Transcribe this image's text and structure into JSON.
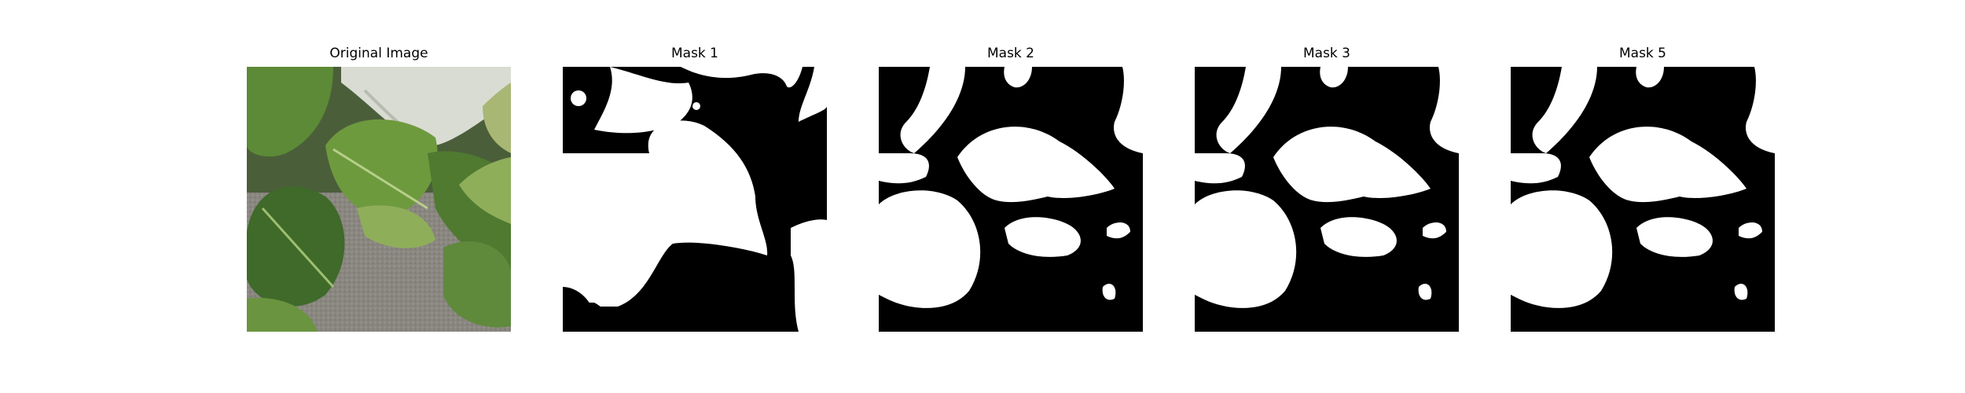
{
  "figure": {
    "panels": [
      {
        "id": "original",
        "title": "Original Image",
        "kind": "photo",
        "description_icon": "leaf-photo"
      },
      {
        "id": "mask1",
        "title": "Mask 1",
        "kind": "mask"
      },
      {
        "id": "mask2",
        "title": "Mask 2",
        "kind": "mask"
      },
      {
        "id": "mask3",
        "title": "Mask 3",
        "kind": "mask"
      },
      {
        "id": "mask5",
        "title": "Mask 5",
        "kind": "mask"
      }
    ]
  },
  "colors": {
    "mask_background": "#000000",
    "mask_foreground": "#ffffff",
    "leaf_dark": "#3f6a2a",
    "leaf_mid": "#5f8a3c",
    "leaf_light": "#8fae5a",
    "gravel": "#8a8680",
    "pot": "#d9dcd2"
  }
}
